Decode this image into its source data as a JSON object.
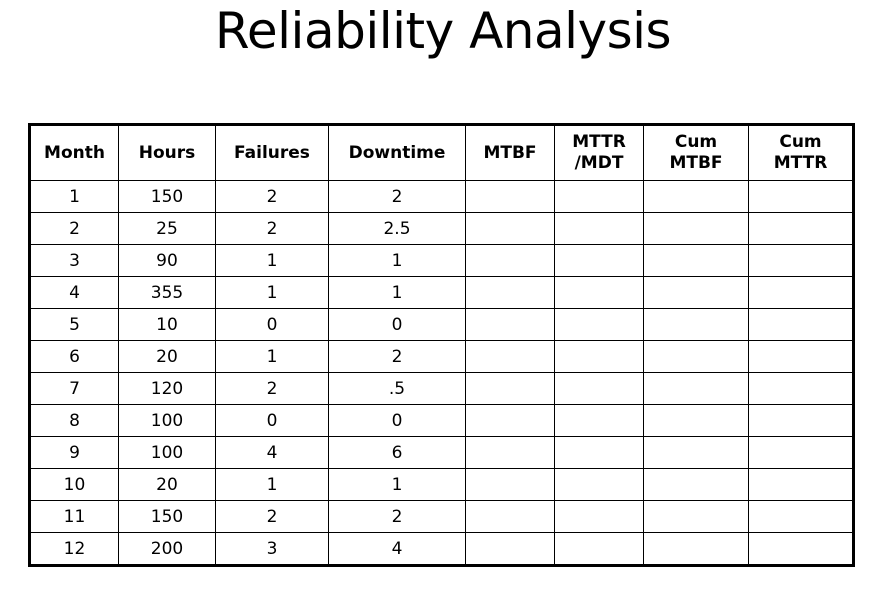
{
  "title": "Reliability Analysis",
  "table": {
    "headers": [
      [
        "Month"
      ],
      [
        "Hours"
      ],
      [
        "Failures"
      ],
      [
        "Downtime"
      ],
      [
        "MTBF"
      ],
      [
        "MTTR",
        "/MDT"
      ],
      [
        "Cum",
        "MTBF"
      ],
      [
        "Cum",
        "MTTR"
      ]
    ],
    "rows": [
      [
        "1",
        "150",
        "2",
        "2",
        "",
        "",
        "",
        ""
      ],
      [
        "2",
        "25",
        "2",
        "2.5",
        "",
        "",
        "",
        ""
      ],
      [
        "3",
        "90",
        "1",
        "1",
        "",
        "",
        "",
        ""
      ],
      [
        "4",
        "355",
        "1",
        "1",
        "",
        "",
        "",
        ""
      ],
      [
        "5",
        "10",
        "0",
        "0",
        "",
        "",
        "",
        ""
      ],
      [
        "6",
        "20",
        "1",
        "2",
        "",
        "",
        "",
        ""
      ],
      [
        "7",
        "120",
        "2",
        ".5",
        "",
        "",
        "",
        ""
      ],
      [
        "8",
        "100",
        "0",
        "0",
        "",
        "",
        "",
        ""
      ],
      [
        "9",
        "100",
        "4",
        "6",
        "",
        "",
        "",
        ""
      ],
      [
        "10",
        "20",
        "1",
        "1",
        "",
        "",
        "",
        ""
      ],
      [
        "11",
        "150",
        "2",
        "2",
        "",
        "",
        "",
        ""
      ],
      [
        "12",
        "200",
        "3",
        "4",
        "",
        "",
        "",
        ""
      ]
    ]
  }
}
